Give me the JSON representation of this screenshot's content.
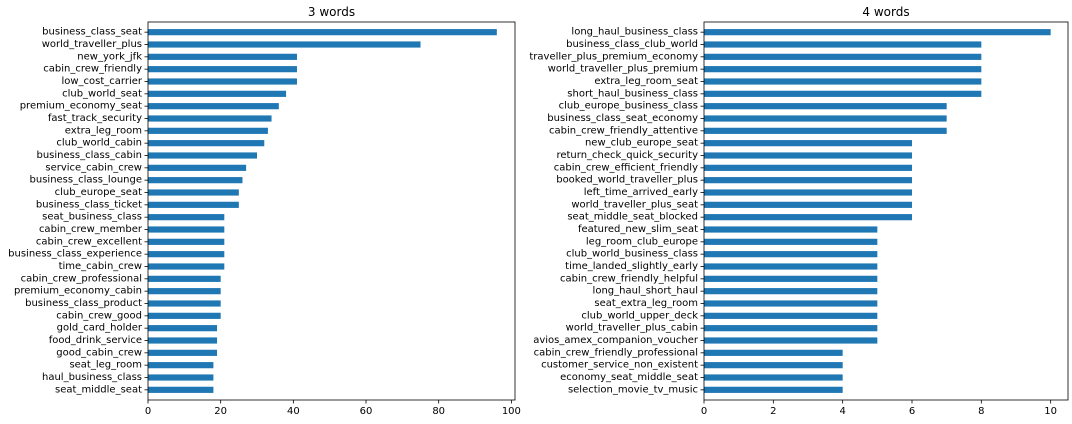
{
  "chart_data": [
    {
      "type": "bar",
      "orientation": "horizontal",
      "title": "3 words",
      "xlabel": "",
      "ylabel": "",
      "xlim": [
        0,
        101
      ],
      "xticks": [
        0,
        20,
        40,
        60,
        80,
        100
      ],
      "grid": false,
      "bar_color": "#1f77b4",
      "categories": [
        "business_class_seat",
        "world_traveller_plus",
        "new_york_jfk",
        "cabin_crew_friendly",
        "low_cost_carrier",
        "club_world_seat",
        "premium_economy_seat",
        "fast_track_security",
        "extra_leg_room",
        "club_world_cabin",
        "business_class_cabin",
        "service_cabin_crew",
        "business_class_lounge",
        "club_europe_seat",
        "business_class_ticket",
        "seat_business_class",
        "cabin_crew_member",
        "cabin_crew_excellent",
        "business_class_experience",
        "time_cabin_crew",
        "cabin_crew_professional",
        "premium_economy_cabin",
        "business_class_product",
        "cabin_crew_good",
        "gold_card_holder",
        "food_drink_service",
        "good_cabin_crew",
        "seat_leg_room",
        "haul_business_class",
        "seat_middle_seat"
      ],
      "values": [
        96,
        75,
        41,
        41,
        41,
        38,
        36,
        34,
        33,
        32,
        30,
        27,
        26,
        25,
        25,
        21,
        21,
        21,
        21,
        21,
        20,
        20,
        20,
        20,
        19,
        19,
        19,
        18,
        18,
        18
      ]
    },
    {
      "type": "bar",
      "orientation": "horizontal",
      "title": "4 words",
      "xlabel": "",
      "ylabel": "",
      "xlim": [
        0,
        10.5
      ],
      "xticks": [
        0,
        2,
        4,
        6,
        8,
        10
      ],
      "grid": false,
      "bar_color": "#1f77b4",
      "categories": [
        "long_haul_business_class",
        "business_class_club_world",
        "traveller_plus_premium_economy",
        "world_traveller_plus_premium",
        "extra_leg_room_seat",
        "short_haul_business_class",
        "club_europe_business_class",
        "business_class_seat_economy",
        "cabin_crew_friendly_attentive",
        "new_club_europe_seat",
        "return_check_quick_security",
        "cabin_crew_efficient_friendly",
        "booked_world_traveller_plus",
        "left_time_arrived_early",
        "world_traveller_plus_seat",
        "seat_middle_seat_blocked",
        "featured_new_slim_seat",
        "leg_room_club_europe",
        "club_world_business_class",
        "time_landed_slightly_early",
        "cabin_crew_friendly_helpful",
        "long_haul_short_haul",
        "seat_extra_leg_room",
        "club_world_upper_deck",
        "world_traveller_plus_cabin",
        "avios_amex_companion_voucher",
        "cabin_crew_friendly_professional",
        "customer_service_non_existent",
        "economy_seat_middle_seat",
        "selection_movie_tv_music"
      ],
      "values": [
        10,
        8,
        8,
        8,
        8,
        8,
        7,
        7,
        7,
        6,
        6,
        6,
        6,
        6,
        6,
        6,
        5,
        5,
        5,
        5,
        5,
        5,
        5,
        5,
        5,
        5,
        4,
        4,
        4,
        4
      ]
    }
  ]
}
